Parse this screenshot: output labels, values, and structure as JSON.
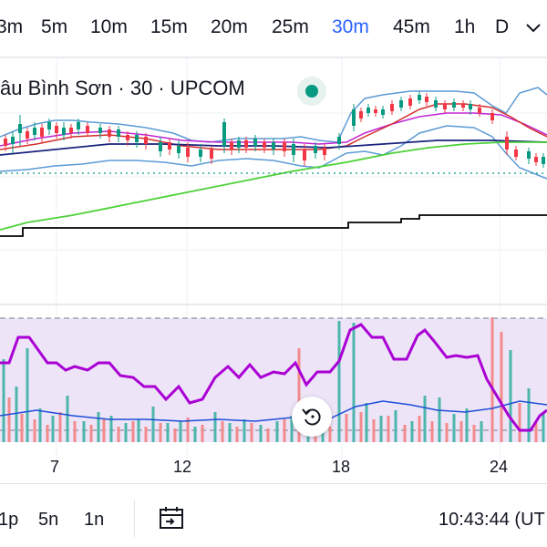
{
  "timeframes": [
    "3m",
    "5m",
    "10m",
    "15m",
    "20m",
    "25m",
    "30m",
    "45m",
    "1h",
    "D"
  ],
  "active_timeframe": "30m",
  "chevron_icon": "chevron-down-icon",
  "legend": {
    "title": "âu Bình Sơn · 30 · UPCOM",
    "status_color": "#089981"
  },
  "x_ticks": [
    "7",
    "12",
    "18",
    "24"
  ],
  "reset_icon": "reset-chart-icon",
  "range_buttons": [
    "1p",
    "5n",
    "1n"
  ],
  "goto_icon": "calendar-goto-icon",
  "clock": "10:43:44 (UT",
  "colors": {
    "up": "#089981",
    "down": "#f23645",
    "bollinger": "#5b9bd5",
    "rsi": "#9c27b0",
    "ema_long": "#4cd137",
    "sma_red": "#d32f2f",
    "sma_magenta": "#c026d3",
    "sma_navy": "#1a237e",
    "price_line": "#000000",
    "volume_ma": "#1e4ed8"
  }
}
